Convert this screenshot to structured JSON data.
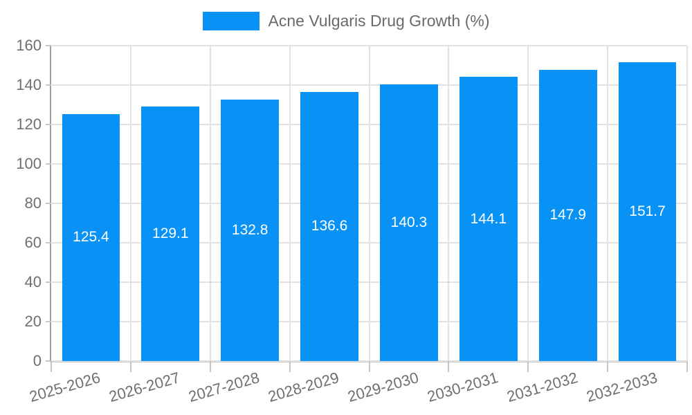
{
  "chart_data": {
    "type": "bar",
    "title": "Acne Vulgaris Drug Growth (%)",
    "categories": [
      "2025-2026",
      "2026-2027",
      "2027-2028",
      "2028-2029",
      "2029-2030",
      "2030-2031",
      "2031-2032",
      "2032-2033"
    ],
    "values": [
      125.4,
      129.1,
      132.8,
      136.6,
      140.3,
      144.1,
      147.9,
      151.7
    ],
    "value_labels": [
      "125.4",
      "129.1",
      "132.8",
      "136.6",
      "140.3",
      "144.1",
      "147.9",
      "151.7"
    ],
    "ylim": [
      0,
      160
    ],
    "yticks": [
      0,
      20,
      40,
      60,
      80,
      100,
      120,
      140,
      160
    ],
    "xlabel": "",
    "ylabel": "",
    "grid": true,
    "legend_position": "top-center",
    "colors": {
      "bar": "#0892f5",
      "value_label": "#ffffff",
      "grid": "#e2e2e2",
      "y_axis": "#9e9e9e",
      "x_axis": "#c6c6c6",
      "tick_mark": "#c6c6c6",
      "tick_label": "#6f6f6f",
      "legend_text": "#6a6a6a",
      "background": "#ffffff"
    }
  }
}
